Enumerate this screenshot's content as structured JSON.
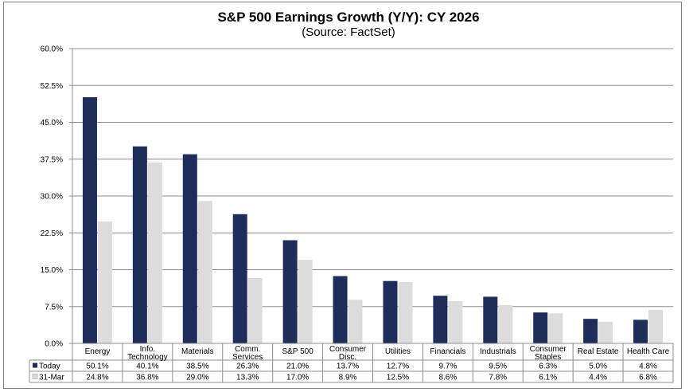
{
  "chart_data": {
    "type": "bar",
    "title": "S&P 500 Earnings Growth (Y/Y): CY 2026",
    "subtitle": "(Source: FactSet)",
    "categories": [
      [
        "Energy"
      ],
      [
        "Info.",
        "Technology"
      ],
      [
        "Materials"
      ],
      [
        "Comm.",
        "Services"
      ],
      [
        "S&P 500"
      ],
      [
        "Consumer",
        "Disc."
      ],
      [
        "Utilities"
      ],
      [
        "Financials"
      ],
      [
        "Industrials"
      ],
      [
        "Consumer",
        "Staples"
      ],
      [
        "Real Estate"
      ],
      [
        "Health Care"
      ]
    ],
    "series": [
      {
        "name": "Today",
        "color": "#1f2d5a",
        "values": [
          50.1,
          40.1,
          38.5,
          26.3,
          21.0,
          13.7,
          12.7,
          9.7,
          9.5,
          6.3,
          5.0,
          4.8
        ],
        "labels": [
          "50.1%",
          "40.1%",
          "38.5%",
          "26.3%",
          "21.0%",
          "13.7%",
          "12.7%",
          "9.7%",
          "9.5%",
          "6.3%",
          "5.0%",
          "4.8%"
        ]
      },
      {
        "name": "31-Mar",
        "color": "#dcdcdc",
        "values": [
          24.8,
          36.8,
          29.0,
          13.3,
          17.0,
          8.9,
          12.5,
          8.6,
          7.8,
          6.1,
          4.4,
          6.8
        ],
        "labels": [
          "24.8%",
          "36.8%",
          "29.0%",
          "13.3%",
          "17.0%",
          "8.9%",
          "12.5%",
          "8.6%",
          "7.8%",
          "6.1%",
          "4.4%",
          "6.8%"
        ]
      }
    ],
    "ylim": [
      0,
      60
    ],
    "yticks": [
      0,
      7.5,
      15,
      22.5,
      30,
      37.5,
      45,
      52.5,
      60
    ],
    "ytick_labels": [
      "0.0%",
      "7.5%",
      "15.0%",
      "22.5%",
      "30.0%",
      "37.5%",
      "45.0%",
      "52.5%",
      "60.0%"
    ],
    "grid": true,
    "legend": "data-table"
  }
}
